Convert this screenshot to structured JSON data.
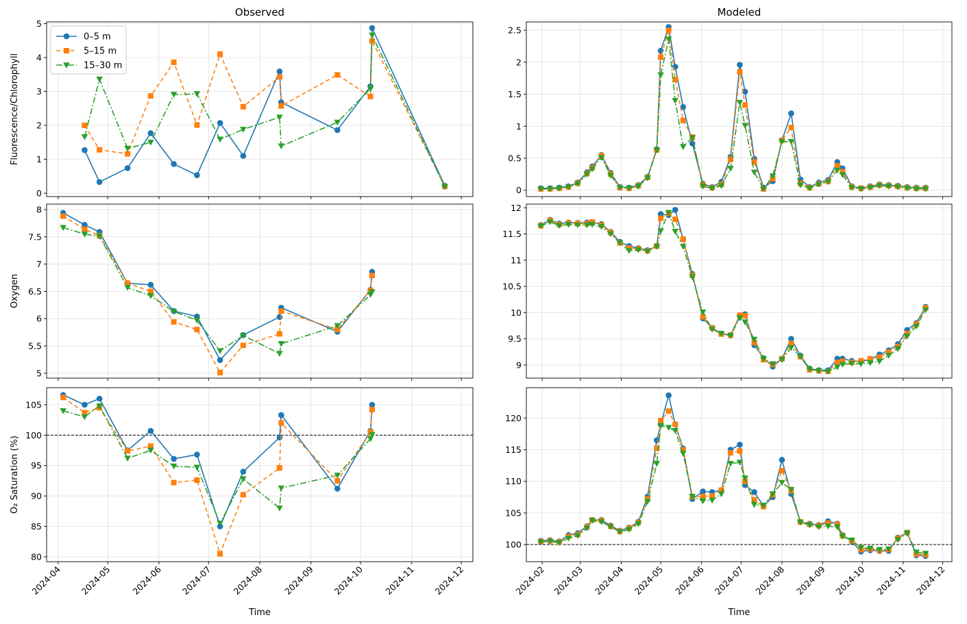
{
  "colors": {
    "s0": "#1f77b4",
    "s1": "#ff7f0e",
    "s2": "#2ca02c"
  },
  "legend": {
    "placement": "upper-left",
    "panel": "observed-chl",
    "entries": [
      "0–5 m",
      "5–15 m",
      "15–30 m"
    ]
  },
  "chart_data": [
    {
      "id": "observed-chl",
      "type": "line",
      "title": "Observed",
      "xlabel": "",
      "ylabel": "Fluorescence/Chlorophyll",
      "xlim": [
        "2024-03-25",
        "2024-12-08"
      ],
      "ylim": [
        -0.1,
        5.05
      ],
      "xticks": [
        "2024-04",
        "2024-05",
        "2024-06",
        "2024-07",
        "2024-08",
        "2024-09",
        "2024-10",
        "2024-11",
        "2024-12"
      ],
      "yticks": [
        0,
        1,
        2,
        3,
        4,
        5
      ],
      "grid": true,
      "x": [
        "2024-04-17",
        "2024-04-26",
        "2024-05-13",
        "2024-05-27",
        "2024-06-10",
        "2024-06-24",
        "2024-07-08",
        "2024-07-22",
        "2024-08-13",
        "2024-08-14",
        "2024-09-17",
        "2024-10-07",
        "2024-10-08",
        "2024-11-21"
      ],
      "series": [
        {
          "name": "0–5 m",
          "values": [
            1.27,
            0.33,
            0.74,
            1.77,
            0.86,
            0.53,
            2.07,
            1.1,
            3.59,
            2.68,
            1.86,
            3.15,
            4.87,
            0.22
          ]
        },
        {
          "name": "5–15 m",
          "values": [
            2.0,
            1.28,
            1.16,
            2.87,
            3.86,
            2.01,
            4.1,
            2.55,
            3.43,
            2.57,
            3.49,
            2.85,
            4.49,
            0.2
          ]
        },
        {
          "name": "15–30 m",
          "values": [
            1.66,
            3.36,
            1.32,
            1.5,
            2.91,
            2.93,
            1.59,
            1.88,
            2.24,
            1.39,
            2.09,
            3.08,
            4.66,
            0.19
          ]
        }
      ]
    },
    {
      "id": "modeled-chl",
      "type": "line",
      "title": "Modeled",
      "xlabel": "",
      "ylabel": "",
      "xlim": [
        "2024-01-20",
        "2024-12-08"
      ],
      "ylim": [
        -0.1,
        2.63
      ],
      "xticks": [
        "2024-02",
        "2024-03",
        "2024-04",
        "2024-05",
        "2024-06",
        "2024-07",
        "2024-08",
        "2024-09",
        "2024-10",
        "2024-11",
        "2024-12"
      ],
      "yticks": [
        0.0,
        0.5,
        1.0,
        1.5,
        2.0,
        2.5
      ],
      "grid": true,
      "x": [
        "2024-01-31",
        "2024-02-07",
        "2024-02-14",
        "2024-02-21",
        "2024-02-28",
        "2024-03-06",
        "2024-03-10",
        "2024-03-17",
        "2024-03-24",
        "2024-03-31",
        "2024-04-07",
        "2024-04-14",
        "2024-04-21",
        "2024-04-28",
        "2024-05-01",
        "2024-05-07",
        "2024-05-12",
        "2024-05-18",
        "2024-05-25",
        "2024-06-02",
        "2024-06-09",
        "2024-06-16",
        "2024-06-23",
        "2024-06-30",
        "2024-07-04",
        "2024-07-11",
        "2024-07-18",
        "2024-07-25",
        "2024-08-01",
        "2024-08-08",
        "2024-08-15",
        "2024-08-22",
        "2024-08-29",
        "2024-09-05",
        "2024-09-12",
        "2024-09-16",
        "2024-09-23",
        "2024-09-30",
        "2024-10-07",
        "2024-10-14",
        "2024-10-21",
        "2024-10-28",
        "2024-11-04",
        "2024-11-11",
        "2024-11-18"
      ],
      "series": [
        {
          "name": "0–5 m",
          "values": [
            0.03,
            0.03,
            0.04,
            0.06,
            0.12,
            0.28,
            0.37,
            0.55,
            0.27,
            0.05,
            0.04,
            0.08,
            0.21,
            0.64,
            2.18,
            2.55,
            1.93,
            1.3,
            0.73,
            0.1,
            0.05,
            0.13,
            0.52,
            1.96,
            1.54,
            0.49,
            0.04,
            0.14,
            0.78,
            1.2,
            0.17,
            0.05,
            0.12,
            0.16,
            0.44,
            0.34,
            0.06,
            0.03,
            0.06,
            0.09,
            0.08,
            0.07,
            0.05,
            0.04,
            0.04
          ]
        },
        {
          "name": "5–15 m",
          "values": [
            0.02,
            0.02,
            0.03,
            0.05,
            0.11,
            0.26,
            0.35,
            0.54,
            0.25,
            0.04,
            0.03,
            0.07,
            0.2,
            0.63,
            2.08,
            2.5,
            1.73,
            1.09,
            0.83,
            0.08,
            0.04,
            0.09,
            0.48,
            1.85,
            1.33,
            0.44,
            0.02,
            0.18,
            0.78,
            0.98,
            0.11,
            0.04,
            0.1,
            0.14,
            0.38,
            0.29,
            0.05,
            0.03,
            0.05,
            0.08,
            0.07,
            0.06,
            0.04,
            0.03,
            0.03
          ]
        },
        {
          "name": "15–30 m",
          "values": [
            0.02,
            0.02,
            0.03,
            0.05,
            0.1,
            0.25,
            0.33,
            0.51,
            0.23,
            0.04,
            0.03,
            0.06,
            0.19,
            0.63,
            1.8,
            2.36,
            1.4,
            0.68,
            0.82,
            0.06,
            0.03,
            0.07,
            0.34,
            1.37,
            1.01,
            0.28,
            0.02,
            0.22,
            0.76,
            0.76,
            0.08,
            0.03,
            0.09,
            0.13,
            0.31,
            0.24,
            0.04,
            0.02,
            0.04,
            0.07,
            0.06,
            0.05,
            0.03,
            0.02,
            0.02
          ]
        }
      ]
    },
    {
      "id": "observed-oxy",
      "type": "line",
      "title": "",
      "xlabel": "",
      "ylabel": "Oxygen",
      "xlim": [
        "2024-03-25",
        "2024-12-08"
      ],
      "ylim": [
        4.91,
        8.1
      ],
      "xticks": [
        "2024-04",
        "2024-05",
        "2024-06",
        "2024-07",
        "2024-08",
        "2024-09",
        "2024-10",
        "2024-11",
        "2024-12"
      ],
      "yticks": [
        5.0,
        5.5,
        6.0,
        6.5,
        7.0,
        7.5,
        8.0
      ],
      "grid": true,
      "x": [
        "2024-04-04",
        "2024-04-17",
        "2024-04-26",
        "2024-05-13",
        "2024-05-27",
        "2024-06-10",
        "2024-06-24",
        "2024-07-08",
        "2024-07-22",
        "2024-08-13",
        "2024-08-14",
        "2024-09-17",
        "2024-10-07",
        "2024-10-08"
      ],
      "series": [
        {
          "name": "0–5 m",
          "values": [
            7.94,
            7.72,
            7.59,
            6.65,
            6.62,
            6.14,
            6.04,
            5.24,
            5.7,
            6.03,
            6.2,
            5.76,
            6.53,
            6.86
          ]
        },
        {
          "name": "5–15 m",
          "values": [
            7.88,
            7.64,
            7.52,
            6.65,
            6.5,
            5.94,
            5.8,
            5.01,
            5.51,
            5.72,
            6.14,
            5.8,
            6.52,
            6.79
          ]
        },
        {
          "name": "15–30 m",
          "values": [
            7.67,
            7.55,
            7.51,
            6.57,
            6.42,
            6.13,
            5.97,
            5.41,
            5.69,
            5.36,
            5.54,
            5.87,
            6.44,
            6.49
          ]
        }
      ]
    },
    {
      "id": "modeled-oxy",
      "type": "line",
      "title": "",
      "xlabel": "",
      "ylabel": "",
      "xlim": [
        "2024-01-20",
        "2024-12-08"
      ],
      "ylim": [
        8.75,
        12.07
      ],
      "xticks": [
        "2024-02",
        "2024-03",
        "2024-04",
        "2024-05",
        "2024-06",
        "2024-07",
        "2024-08",
        "2024-09",
        "2024-10",
        "2024-11",
        "2024-12"
      ],
      "yticks": [
        9.0,
        9.5,
        10.0,
        10.5,
        11.0,
        11.5,
        12.0
      ],
      "grid": true,
      "x": [
        "2024-01-31",
        "2024-02-07",
        "2024-02-14",
        "2024-02-21",
        "2024-02-28",
        "2024-03-06",
        "2024-03-10",
        "2024-03-17",
        "2024-03-24",
        "2024-03-31",
        "2024-04-07",
        "2024-04-14",
        "2024-04-21",
        "2024-04-28",
        "2024-05-01",
        "2024-05-07",
        "2024-05-12",
        "2024-05-18",
        "2024-05-25",
        "2024-06-02",
        "2024-06-09",
        "2024-06-16",
        "2024-06-23",
        "2024-06-30",
        "2024-07-04",
        "2024-07-11",
        "2024-07-18",
        "2024-07-25",
        "2024-08-01",
        "2024-08-08",
        "2024-08-15",
        "2024-08-22",
        "2024-08-29",
        "2024-09-05",
        "2024-09-12",
        "2024-09-16",
        "2024-09-23",
        "2024-09-30",
        "2024-10-07",
        "2024-10-14",
        "2024-10-21",
        "2024-10-28",
        "2024-11-04",
        "2024-11-11",
        "2024-11-18"
      ],
      "series": [
        {
          "name": "0–5 m",
          "values": [
            11.67,
            11.77,
            11.7,
            11.72,
            11.71,
            11.72,
            11.72,
            11.69,
            11.54,
            11.35,
            11.27,
            11.23,
            11.19,
            11.27,
            11.88,
            11.86,
            11.96,
            11.4,
            10.74,
            9.89,
            9.71,
            9.6,
            9.57,
            9.94,
            9.97,
            9.38,
            9.13,
            8.97,
            9.12,
            9.5,
            9.18,
            8.93,
            8.9,
            8.9,
            9.12,
            9.12,
            9.08,
            9.07,
            9.1,
            9.2,
            9.28,
            9.4,
            9.67,
            9.8,
            10.11
          ]
        },
        {
          "name": "5–15 m",
          "values": [
            11.66,
            11.76,
            11.68,
            11.71,
            11.7,
            11.7,
            11.73,
            11.67,
            11.53,
            11.33,
            11.23,
            11.22,
            11.18,
            11.27,
            11.8,
            11.89,
            11.78,
            11.4,
            10.71,
            9.92,
            9.71,
            9.59,
            9.57,
            9.95,
            9.94,
            9.43,
            9.1,
            9.01,
            9.12,
            9.41,
            9.16,
            8.91,
            8.89,
            8.88,
            9.05,
            9.07,
            9.05,
            9.08,
            9.12,
            9.15,
            9.25,
            9.35,
            9.6,
            9.78,
            10.09
          ]
        },
        {
          "name": "15–30 m",
          "values": [
            11.65,
            11.73,
            11.66,
            11.68,
            11.67,
            11.67,
            11.68,
            11.64,
            11.5,
            11.33,
            11.18,
            11.2,
            11.17,
            11.26,
            11.56,
            11.91,
            11.55,
            11.26,
            10.68,
            10.01,
            9.68,
            9.6,
            9.56,
            9.9,
            9.82,
            9.49,
            9.12,
            9.02,
            9.1,
            9.33,
            9.16,
            8.92,
            8.89,
            8.88,
            8.96,
            9.01,
            9.03,
            9.02,
            9.04,
            9.07,
            9.18,
            9.31,
            9.55,
            9.74,
            10.05
          ]
        }
      ]
    },
    {
      "id": "observed-sat",
      "type": "line",
      "title": "",
      "xlabel": "Time",
      "ylabel": "O₂ Saturation (%)",
      "xlim": [
        "2024-03-25",
        "2024-12-08"
      ],
      "ylim": [
        79.2,
        107.8
      ],
      "xticks": [
        "2024-04",
        "2024-05",
        "2024-06",
        "2024-07",
        "2024-08",
        "2024-09",
        "2024-10",
        "2024-11",
        "2024-12"
      ],
      "yticks": [
        80,
        85,
        90,
        95,
        100,
        105
      ],
      "grid": true,
      "reference_line": 100,
      "x": [
        "2024-04-04",
        "2024-04-17",
        "2024-04-26",
        "2024-05-13",
        "2024-05-27",
        "2024-06-10",
        "2024-06-24",
        "2024-07-08",
        "2024-07-22",
        "2024-08-13",
        "2024-08-14",
        "2024-09-17",
        "2024-10-07",
        "2024-10-08"
      ],
      "series": [
        {
          "name": "0–5 m",
          "values": [
            106.6,
            105.0,
            106.0,
            97.5,
            100.7,
            96.1,
            96.8,
            85.0,
            94.0,
            99.6,
            103.3,
            91.2,
            100.7,
            105.0
          ]
        },
        {
          "name": "5–15 m",
          "values": [
            106.2,
            103.7,
            104.5,
            97.4,
            98.2,
            92.2,
            92.6,
            80.5,
            90.2,
            94.6,
            102.0,
            92.5,
            100.5,
            104.2
          ]
        },
        {
          "name": "15–30 m",
          "values": [
            104.0,
            103.0,
            104.8,
            96.2,
            97.5,
            94.9,
            94.7,
            85.5,
            92.8,
            88.0,
            91.3,
            93.4,
            99.4,
            100.1
          ]
        }
      ]
    },
    {
      "id": "modeled-sat",
      "type": "line",
      "title": "",
      "xlabel": "Time",
      "ylabel": "",
      "xlim": [
        "2024-01-20",
        "2024-12-08"
      ],
      "ylim": [
        97.3,
        124.8
      ],
      "xticks": [
        "2024-02",
        "2024-03",
        "2024-04",
        "2024-05",
        "2024-06",
        "2024-07",
        "2024-08",
        "2024-09",
        "2024-10",
        "2024-11",
        "2024-12"
      ],
      "yticks": [
        100,
        105,
        110,
        115,
        120
      ],
      "grid": true,
      "reference_line": 100,
      "x": [
        "2024-01-31",
        "2024-02-07",
        "2024-02-14",
        "2024-02-21",
        "2024-02-28",
        "2024-03-06",
        "2024-03-10",
        "2024-03-17",
        "2024-03-24",
        "2024-03-31",
        "2024-04-07",
        "2024-04-14",
        "2024-04-21",
        "2024-04-28",
        "2024-05-01",
        "2024-05-07",
        "2024-05-12",
        "2024-05-18",
        "2024-05-25",
        "2024-06-02",
        "2024-06-09",
        "2024-06-16",
        "2024-06-23",
        "2024-06-30",
        "2024-07-04",
        "2024-07-11",
        "2024-07-18",
        "2024-07-25",
        "2024-08-01",
        "2024-08-08",
        "2024-08-15",
        "2024-08-22",
        "2024-08-29",
        "2024-09-05",
        "2024-09-12",
        "2024-09-16",
        "2024-09-23",
        "2024-09-30",
        "2024-10-07",
        "2024-10-14",
        "2024-10-21",
        "2024-10-28",
        "2024-11-04",
        "2024-11-11",
        "2024-11-18"
      ],
      "series": [
        {
          "name": "0–5 m",
          "values": [
            100.6,
            100.7,
            100.5,
            101.5,
            101.8,
            102.9,
            103.9,
            103.9,
            103.0,
            102.2,
            102.7,
            103.6,
            107.6,
            116.5,
            119.0,
            123.6,
            119.0,
            115.2,
            107.2,
            108.4,
            108.3,
            108.6,
            115.0,
            115.8,
            109.4,
            108.3,
            106.1,
            107.5,
            113.4,
            108.0,
            103.6,
            103.3,
            103.1,
            103.7,
            103.3,
            101.5,
            100.5,
            98.9,
            99.1,
            99.0,
            99.0,
            101.1,
            101.9,
            98.3,
            98.2
          ]
        },
        {
          "name": "5–15 m",
          "values": [
            100.5,
            100.6,
            100.4,
            101.3,
            101.6,
            102.8,
            103.9,
            103.8,
            102.9,
            102.1,
            102.6,
            103.5,
            107.2,
            115.2,
            119.6,
            121.1,
            119.0,
            115.0,
            107.6,
            107.6,
            107.7,
            108.6,
            114.5,
            114.8,
            110.0,
            107.1,
            106.0,
            107.9,
            111.7,
            108.5,
            103.6,
            103.2,
            103.0,
            103.4,
            103.2,
            101.4,
            100.6,
            99.2,
            99.3,
            99.1,
            99.2,
            101.0,
            101.9,
            98.5,
            98.4
          ]
        },
        {
          "name": "15–30 m",
          "values": [
            100.4,
            100.5,
            100.3,
            101.0,
            101.4,
            102.6,
            103.8,
            103.6,
            102.8,
            102.0,
            102.4,
            103.3,
            106.8,
            112.8,
            118.8,
            118.5,
            118.0,
            114.4,
            107.6,
            106.9,
            107.0,
            108.0,
            112.8,
            113.0,
            110.5,
            106.3,
            106.2,
            108.0,
            109.8,
            108.7,
            103.5,
            103.1,
            102.8,
            102.9,
            102.8,
            101.3,
            100.7,
            99.5,
            99.4,
            99.2,
            99.3,
            100.8,
            101.8,
            98.8,
            98.6
          ]
        }
      ]
    }
  ]
}
